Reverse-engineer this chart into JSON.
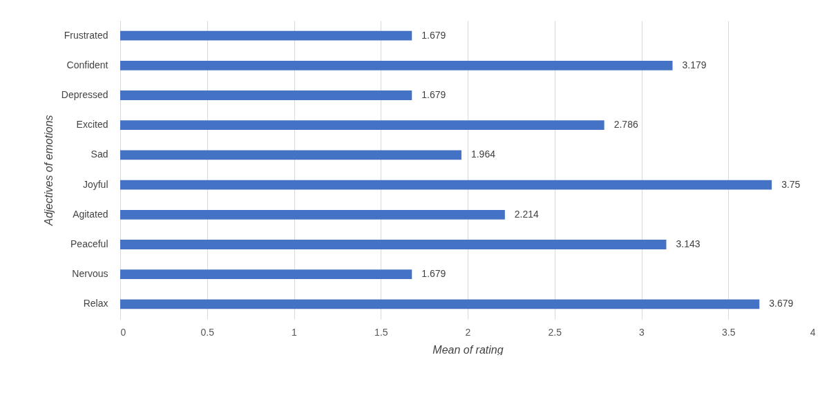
{
  "chart_data": {
    "type": "bar",
    "orientation": "horizontal",
    "xlabel": "Mean of rating",
    "ylabel": "Adjectives of emotions",
    "categories": [
      "Frustrated",
      "Confident",
      "Depressed",
      "Excited",
      "Sad",
      "Joyful",
      "Agitated",
      "Peaceful",
      "Nervous",
      "Relax"
    ],
    "values": [
      1.679,
      3.179,
      1.679,
      2.786,
      1.964,
      3.75,
      2.214,
      3.143,
      1.679,
      3.679
    ],
    "color": "#4472c4",
    "xlim": [
      0,
      4
    ],
    "xticks": [
      0,
      0.5,
      1,
      1.5,
      2,
      2.5,
      3,
      3.5,
      4
    ],
    "grid": "x",
    "data_labels": true
  }
}
